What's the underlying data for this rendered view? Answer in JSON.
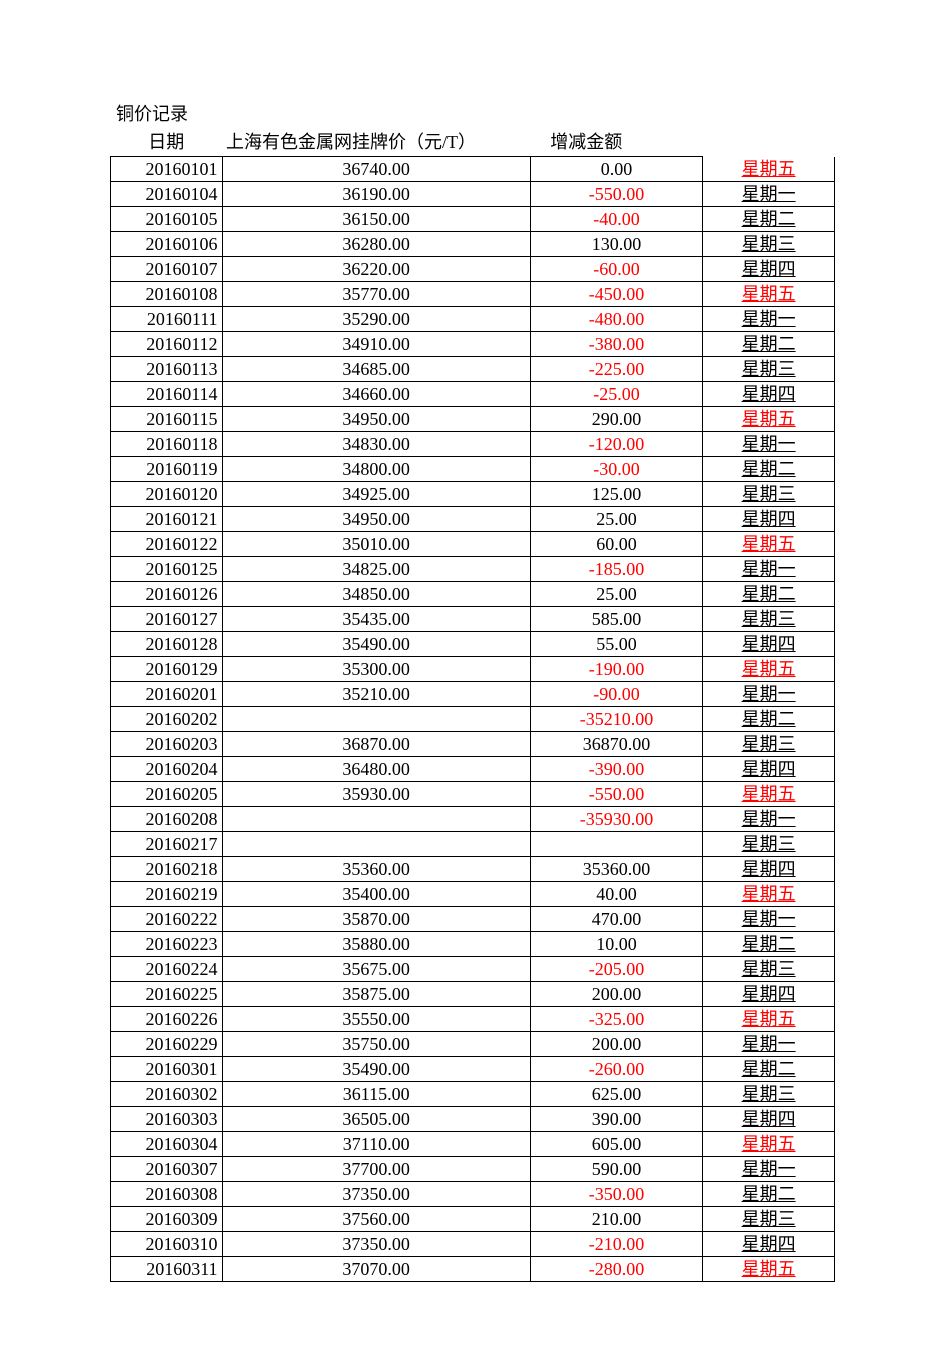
{
  "title": "铜价记录",
  "headers": {
    "date": "日期",
    "price": "上海有色金属网挂牌价（元/T）",
    "change": "增减金额",
    "day": ""
  },
  "colors": {
    "text": "#000000",
    "negative": "#ff0000",
    "friday": "#ff0000",
    "border": "#000000",
    "background": "#ffffff"
  },
  "font": {
    "family": "SimSun",
    "size_pt": 14
  },
  "rows": [
    {
      "date": "20160101",
      "price": "36740.00",
      "change": "0.00",
      "neg": false,
      "day": "星期五",
      "fri": true
    },
    {
      "date": "20160104",
      "price": "36190.00",
      "change": "-550.00",
      "neg": true,
      "day": "星期一",
      "fri": false
    },
    {
      "date": "20160105",
      "price": "36150.00",
      "change": "-40.00",
      "neg": true,
      "day": "星期二",
      "fri": false
    },
    {
      "date": "20160106",
      "price": "36280.00",
      "change": "130.00",
      "neg": false,
      "day": "星期三",
      "fri": false
    },
    {
      "date": "20160107",
      "price": "36220.00",
      "change": "-60.00",
      "neg": true,
      "day": "星期四",
      "fri": false
    },
    {
      "date": "20160108",
      "price": "35770.00",
      "change": "-450.00",
      "neg": true,
      "day": "星期五",
      "fri": true
    },
    {
      "date": "20160111",
      "price": "35290.00",
      "change": "-480.00",
      "neg": true,
      "day": "星期一",
      "fri": false
    },
    {
      "date": "20160112",
      "price": "34910.00",
      "change": "-380.00",
      "neg": true,
      "day": "星期二",
      "fri": false
    },
    {
      "date": "20160113",
      "price": "34685.00",
      "change": "-225.00",
      "neg": true,
      "day": "星期三",
      "fri": false
    },
    {
      "date": "20160114",
      "price": "34660.00",
      "change": "-25.00",
      "neg": true,
      "day": "星期四",
      "fri": false
    },
    {
      "date": "20160115",
      "price": "34950.00",
      "change": "290.00",
      "neg": false,
      "day": "星期五",
      "fri": true
    },
    {
      "date": "20160118",
      "price": "34830.00",
      "change": "-120.00",
      "neg": true,
      "day": "星期一",
      "fri": false
    },
    {
      "date": "20160119",
      "price": "34800.00",
      "change": "-30.00",
      "neg": true,
      "day": "星期二",
      "fri": false
    },
    {
      "date": "20160120",
      "price": "34925.00",
      "change": "125.00",
      "neg": false,
      "day": "星期三",
      "fri": false
    },
    {
      "date": "20160121",
      "price": "34950.00",
      "change": "25.00",
      "neg": false,
      "day": "星期四",
      "fri": false
    },
    {
      "date": "20160122",
      "price": "35010.00",
      "change": "60.00",
      "neg": false,
      "day": "星期五",
      "fri": true
    },
    {
      "date": "20160125",
      "price": "34825.00",
      "change": "-185.00",
      "neg": true,
      "day": "星期一",
      "fri": false
    },
    {
      "date": "20160126",
      "price": "34850.00",
      "change": "25.00",
      "neg": false,
      "day": "星期二",
      "fri": false
    },
    {
      "date": "20160127",
      "price": "35435.00",
      "change": "585.00",
      "neg": false,
      "day": "星期三",
      "fri": false
    },
    {
      "date": "20160128",
      "price": "35490.00",
      "change": "55.00",
      "neg": false,
      "day": "星期四",
      "fri": false
    },
    {
      "date": "20160129",
      "price": "35300.00",
      "change": "-190.00",
      "neg": true,
      "day": "星期五",
      "fri": true
    },
    {
      "date": "20160201",
      "price": "35210.00",
      "change": "-90.00",
      "neg": true,
      "day": "星期一",
      "fri": false
    },
    {
      "date": "20160202",
      "price": "",
      "change": "-35210.00",
      "neg": true,
      "day": "星期二",
      "fri": false
    },
    {
      "date": "20160203",
      "price": "36870.00",
      "change": "36870.00",
      "neg": false,
      "day": "星期三",
      "fri": false
    },
    {
      "date": "20160204",
      "price": "36480.00",
      "change": "-390.00",
      "neg": true,
      "day": "星期四",
      "fri": false
    },
    {
      "date": "20160205",
      "price": "35930.00",
      "change": "-550.00",
      "neg": true,
      "day": "星期五",
      "fri": true
    },
    {
      "date": "20160208",
      "price": "",
      "change": "-35930.00",
      "neg": true,
      "day": "星期一",
      "fri": false
    },
    {
      "date": "20160217",
      "price": "",
      "change": "",
      "neg": false,
      "day": "星期三",
      "fri": false
    },
    {
      "date": "20160218",
      "price": "35360.00",
      "change": "35360.00",
      "neg": false,
      "day": "星期四",
      "fri": false
    },
    {
      "date": "20160219",
      "price": "35400.00",
      "change": "40.00",
      "neg": false,
      "day": "星期五",
      "fri": true
    },
    {
      "date": "20160222",
      "price": "35870.00",
      "change": "470.00",
      "neg": false,
      "day": "星期一",
      "fri": false
    },
    {
      "date": "20160223",
      "price": "35880.00",
      "change": "10.00",
      "neg": false,
      "day": "星期二",
      "fri": false
    },
    {
      "date": "20160224",
      "price": "35675.00",
      "change": "-205.00",
      "neg": true,
      "day": "星期三",
      "fri": false
    },
    {
      "date": "20160225",
      "price": "35875.00",
      "change": "200.00",
      "neg": false,
      "day": "星期四",
      "fri": false
    },
    {
      "date": "20160226",
      "price": "35550.00",
      "change": "-325.00",
      "neg": true,
      "day": "星期五",
      "fri": true
    },
    {
      "date": "20160229",
      "price": "35750.00",
      "change": "200.00",
      "neg": false,
      "day": "星期一",
      "fri": false
    },
    {
      "date": "20160301",
      "price": "35490.00",
      "change": "-260.00",
      "neg": true,
      "day": "星期二",
      "fri": false
    },
    {
      "date": "20160302",
      "price": "36115.00",
      "change": "625.00",
      "neg": false,
      "day": "星期三",
      "fri": false
    },
    {
      "date": "20160303",
      "price": "36505.00",
      "change": "390.00",
      "neg": false,
      "day": "星期四",
      "fri": false
    },
    {
      "date": "20160304",
      "price": "37110.00",
      "change": "605.00",
      "neg": false,
      "day": "星期五",
      "fri": true
    },
    {
      "date": "20160307",
      "price": "37700.00",
      "change": "590.00",
      "neg": false,
      "day": "星期一",
      "fri": false
    },
    {
      "date": "20160308",
      "price": "37350.00",
      "change": "-350.00",
      "neg": true,
      "day": "星期二",
      "fri": false
    },
    {
      "date": "20160309",
      "price": "37560.00",
      "change": "210.00",
      "neg": false,
      "day": "星期三",
      "fri": false
    },
    {
      "date": "20160310",
      "price": "37350.00",
      "change": "-210.00",
      "neg": true,
      "day": "星期四",
      "fri": false
    },
    {
      "date": "20160311",
      "price": "37070.00",
      "change": "-280.00",
      "neg": true,
      "day": "星期五",
      "fri": true
    }
  ]
}
